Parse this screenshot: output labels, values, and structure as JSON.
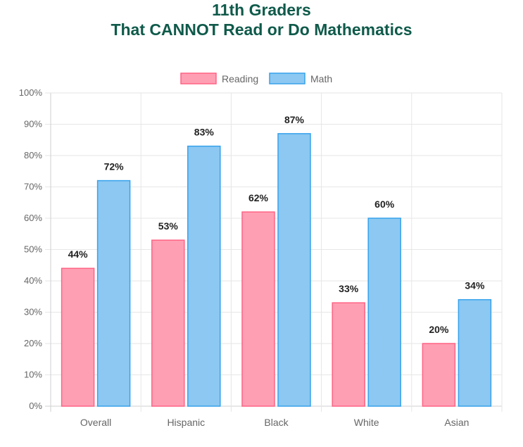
{
  "chart_data": {
    "type": "bar",
    "title": [
      "11th Graders",
      "That CANNOT Read or Do Mathematics"
    ],
    "categories": [
      "Overall",
      "Hispanic",
      "Black",
      "White",
      "Asian"
    ],
    "series": [
      {
        "name": "Reading",
        "values": [
          44,
          53,
          62,
          33,
          20
        ],
        "labels": [
          "44%",
          "53%",
          "62%",
          "33%",
          "20%"
        ],
        "fill": "#ff9fb4",
        "stroke": "#ff6384"
      },
      {
        "name": "Math",
        "values": [
          72,
          83,
          87,
          60,
          34
        ],
        "labels": [
          "72%",
          "83%",
          "87%",
          "60%",
          "34%"
        ],
        "fill": "#8cc8f2",
        "stroke": "#36a2eb"
      }
    ],
    "yticks": [
      "0%",
      "10%",
      "20%",
      "30%",
      "40%",
      "50%",
      "60%",
      "70%",
      "80%",
      "90%",
      "100%"
    ],
    "ylim": [
      0,
      100
    ],
    "grid": true,
    "legend": "top",
    "title_color": "#0f5a4a"
  }
}
